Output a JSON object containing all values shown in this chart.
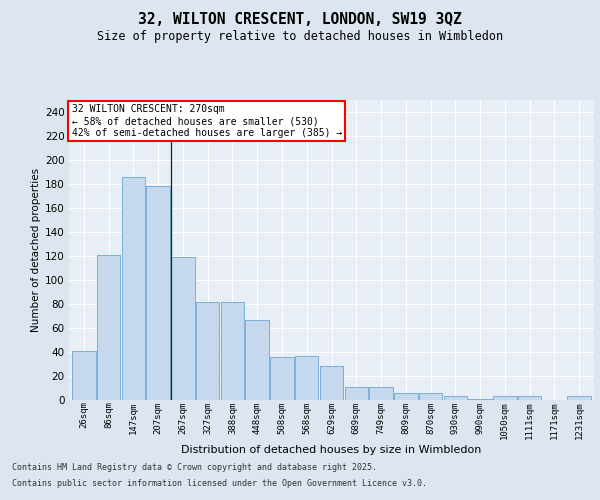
{
  "title_line1": "32, WILTON CRESCENT, LONDON, SW19 3QZ",
  "title_line2": "Size of property relative to detached houses in Wimbledon",
  "xlabel": "Distribution of detached houses by size in Wimbledon",
  "ylabel": "Number of detached properties",
  "categories": [
    "26sqm",
    "86sqm",
    "147sqm",
    "207sqm",
    "267sqm",
    "327sqm",
    "388sqm",
    "448sqm",
    "508sqm",
    "568sqm",
    "629sqm",
    "689sqm",
    "749sqm",
    "809sqm",
    "870sqm",
    "930sqm",
    "990sqm",
    "1050sqm",
    "1111sqm",
    "1171sqm",
    "1231sqm"
  ],
  "values": [
    41,
    121,
    186,
    178,
    119,
    82,
    82,
    67,
    36,
    37,
    28,
    11,
    11,
    6,
    6,
    3,
    1,
    3,
    3,
    0,
    3
  ],
  "bar_color": "#c5d8ee",
  "bar_edge_color": "#7aafd4",
  "annotation_text": "32 WILTON CRESCENT: 270sqm\n← 58% of detached houses are smaller (530)\n42% of semi-detached houses are larger (385) →",
  "footer_line1": "Contains HM Land Registry data © Crown copyright and database right 2025.",
  "footer_line2": "Contains public sector information licensed under the Open Government Licence v3.0.",
  "bg_color": "#dde6f0",
  "plot_bg_color": "#e8eef6",
  "grid_color": "#ffffff",
  "ylim": [
    0,
    250
  ],
  "yticks": [
    0,
    20,
    40,
    60,
    80,
    100,
    120,
    140,
    160,
    180,
    200,
    220,
    240
  ]
}
